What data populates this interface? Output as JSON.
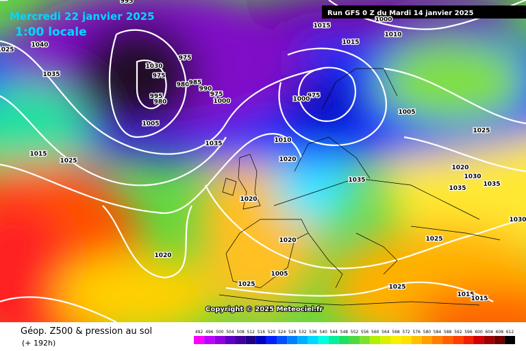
{
  "header": {
    "date": "Mercredi 22 janvier 2025",
    "time": "1:00 locale",
    "run": "Run GFS 0 Z du Mardi 14 janvier 2025"
  },
  "copyright": "Copyright © 2025 Meteociel.fr",
  "footer": {
    "title": "Géop. Z500 & pression au sol",
    "lead": "(+ 192h)"
  },
  "isobars": [
    "995",
    "1015",
    "1000",
    "1010",
    "1015",
    "1025",
    "1040",
    "1035",
    "1030",
    "975",
    "975",
    "980",
    "985",
    "990",
    "995",
    "980",
    "975",
    "1000",
    "1005",
    "975",
    "1000",
    "1005",
    "1025",
    "1035",
    "1010",
    "1020",
    "1015",
    "1025",
    "1020",
    "1030",
    "1035",
    "1035",
    "1035",
    "1020",
    "1030",
    "1020",
    "1025",
    "1020",
    "1005",
    "1025",
    "1025",
    "1015",
    "1015",
    "1015"
  ],
  "colorbar": {
    "ticks": [
      492,
      496,
      500,
      504,
      508,
      512,
      516,
      520,
      524,
      528,
      532,
      536,
      540,
      544,
      548,
      552,
      556,
      560,
      564,
      568,
      572,
      576,
      580,
      584,
      588,
      592,
      596,
      600,
      604,
      608,
      612
    ]
  }
}
